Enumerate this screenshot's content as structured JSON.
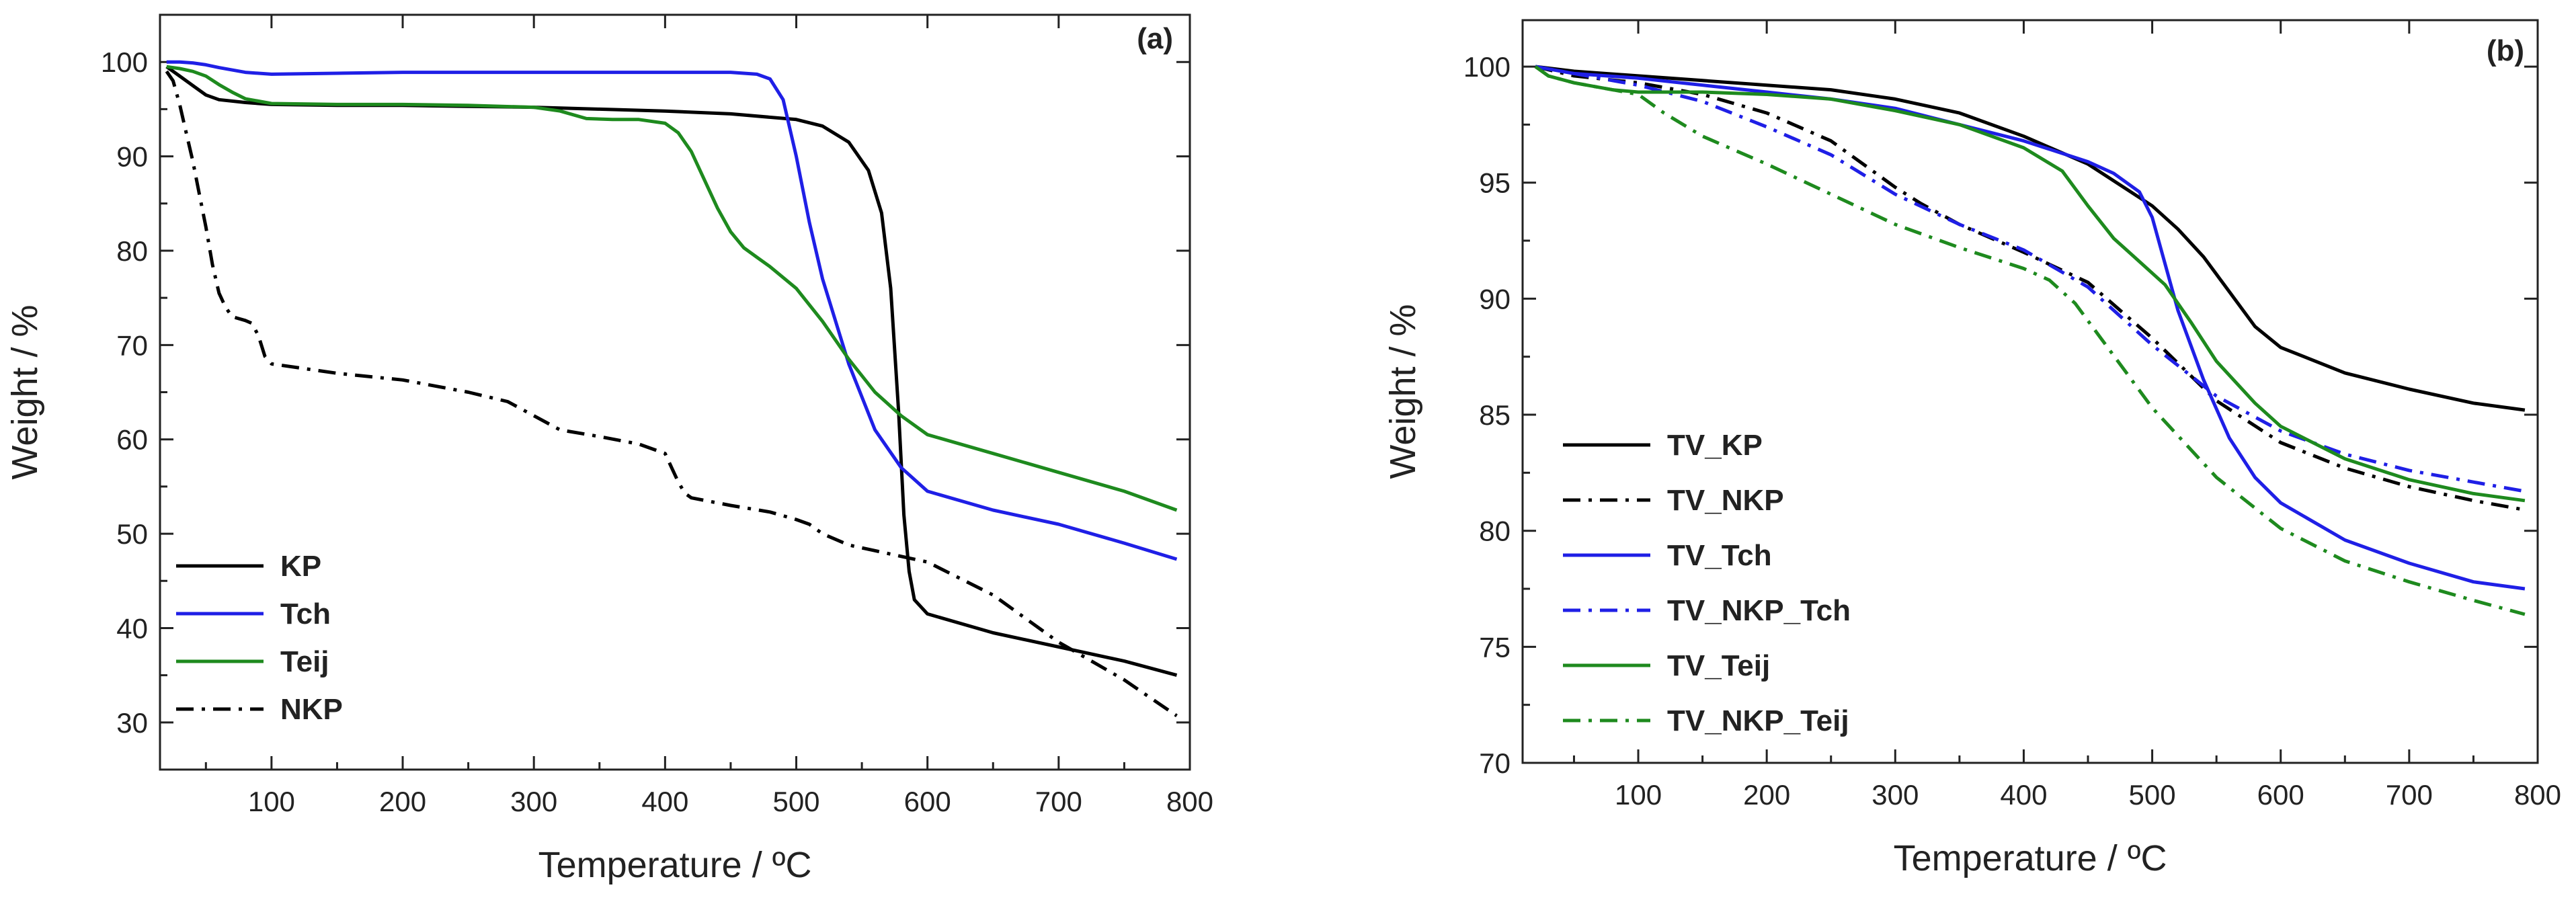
{
  "figure": {
    "panels": [
      "a",
      "b"
    ]
  },
  "chart_data": [
    {
      "type": "line",
      "panel_label": "(a)",
      "xlabel": "Temperature / ºC",
      "ylabel": "Weight / %",
      "xlim": [
        15,
        800
      ],
      "ylim": [
        25,
        105
      ],
      "xticks": [
        100,
        200,
        300,
        400,
        500,
        600,
        700,
        800
      ],
      "yticks": [
        30,
        40,
        50,
        60,
        70,
        80,
        90,
        100
      ],
      "legend_position": "bottom-left",
      "series": [
        {
          "name": "KP",
          "color": "#000000",
          "dash": "solid",
          "x": [
            20,
            30,
            40,
            50,
            60,
            80,
            100,
            150,
            200,
            250,
            300,
            350,
            400,
            450,
            500,
            520,
            540,
            555,
            565,
            572,
            578,
            582,
            586,
            590,
            600,
            650,
            700,
            750,
            790
          ],
          "y": [
            99.5,
            98.5,
            97.5,
            96.5,
            96,
            95.7,
            95.5,
            95.4,
            95.4,
            95.3,
            95.2,
            95.0,
            94.8,
            94.5,
            93.9,
            93.2,
            91.5,
            88.5,
            84,
            76,
            63,
            52,
            46,
            43,
            41.5,
            39.5,
            38,
            36.5,
            35
          ]
        },
        {
          "name": "Tch",
          "color": "#1f1fe6",
          "dash": "solid",
          "x": [
            20,
            30,
            40,
            50,
            60,
            80,
            100,
            150,
            200,
            300,
            400,
            450,
            470,
            480,
            490,
            500,
            510,
            520,
            540,
            560,
            580,
            600,
            650,
            700,
            750,
            790
          ],
          "y": [
            100,
            100,
            99.9,
            99.7,
            99.4,
            98.9,
            98.7,
            98.8,
            98.9,
            98.9,
            98.9,
            98.9,
            98.7,
            98.2,
            96,
            90,
            83,
            77,
            68,
            61,
            57,
            54.5,
            52.5,
            51,
            49,
            47.3
          ]
        },
        {
          "name": "Teij",
          "color": "#1e8a1e",
          "dash": "solid",
          "x": [
            20,
            30,
            40,
            50,
            60,
            70,
            80,
            100,
            150,
            200,
            250,
            300,
            320,
            340,
            360,
            380,
            400,
            410,
            420,
            430,
            440,
            450,
            460,
            470,
            480,
            500,
            520,
            540,
            560,
            580,
            600,
            650,
            700,
            750,
            790
          ],
          "y": [
            99.5,
            99.3,
            99,
            98.5,
            97.6,
            96.8,
            96.1,
            95.6,
            95.5,
            95.5,
            95.4,
            95.2,
            94.8,
            94.0,
            93.9,
            93.9,
            93.5,
            92.5,
            90.5,
            87.5,
            84.5,
            82,
            80.3,
            79.3,
            78.3,
            76,
            72.5,
            68.5,
            65,
            62.5,
            60.5,
            58.5,
            56.5,
            54.5,
            52.5
          ]
        },
        {
          "name": "NKP",
          "color": "#000000",
          "dash": "dashdot",
          "x": [
            20,
            25,
            30,
            35,
            40,
            45,
            50,
            55,
            60,
            65,
            70,
            75,
            80,
            85,
            90,
            95,
            100,
            150,
            200,
            250,
            280,
            300,
            320,
            350,
            380,
            400,
            405,
            410,
            415,
            420,
            450,
            480,
            500,
            510,
            520,
            540,
            560,
            580,
            600,
            650,
            700,
            750,
            790
          ],
          "y": [
            99,
            98,
            95.5,
            92.5,
            89.5,
            86,
            82.5,
            78.5,
            75.5,
            74,
            73,
            72.8,
            72.6,
            72.3,
            71,
            68.8,
            68,
            67,
            66.3,
            65,
            64,
            62.5,
            61,
            60.3,
            59.5,
            58.5,
            57,
            55.5,
            54.3,
            53.8,
            53,
            52.3,
            51.5,
            51,
            50,
            48.8,
            48.2,
            47.6,
            47,
            43.5,
            38.5,
            34.5,
            30.7
          ]
        }
      ]
    },
    {
      "type": "line",
      "panel_label": "(b)",
      "xlabel": "Temperature / ºC",
      "ylabel": "Weight / %",
      "xlim": [
        10,
        800
      ],
      "ylim": [
        70,
        102
      ],
      "xticks": [
        100,
        200,
        300,
        400,
        500,
        600,
        700,
        800
      ],
      "yticks": [
        70,
        75,
        80,
        85,
        90,
        95,
        100
      ],
      "legend_position": "bottom-left",
      "series": [
        {
          "name": "TV_KP",
          "color": "#000000",
          "dash": "solid",
          "x": [
            20,
            50,
            100,
            150,
            200,
            250,
            300,
            350,
            400,
            450,
            500,
            520,
            540,
            560,
            580,
            600,
            650,
            700,
            750,
            790
          ],
          "y": [
            100,
            99.8,
            99.6,
            99.4,
            99.2,
            99.0,
            98.6,
            98.0,
            97.0,
            95.8,
            94.0,
            93.0,
            91.8,
            90.3,
            88.8,
            87.9,
            86.8,
            86.1,
            85.5,
            85.2
          ]
        },
        {
          "name": "TV_NKP",
          "color": "#000000",
          "dash": "dashdot",
          "x": [
            20,
            50,
            100,
            150,
            200,
            250,
            280,
            300,
            320,
            350,
            400,
            450,
            500,
            550,
            600,
            650,
            700,
            750,
            790
          ],
          "y": [
            100,
            99.6,
            99.3,
            98.8,
            98.0,
            96.8,
            95.6,
            94.8,
            94.1,
            93.2,
            92.0,
            90.7,
            88.3,
            85.6,
            83.8,
            82.7,
            81.9,
            81.3,
            80.9
          ]
        },
        {
          "name": "TV_Tch",
          "color": "#1f1fe6",
          "dash": "solid",
          "x": [
            20,
            50,
            100,
            150,
            200,
            250,
            300,
            350,
            400,
            450,
            470,
            490,
            500,
            510,
            520,
            540,
            560,
            580,
            600,
            650,
            700,
            750,
            790
          ],
          "y": [
            100,
            99.7,
            99.5,
            99.2,
            98.9,
            98.6,
            98.2,
            97.5,
            96.8,
            95.9,
            95.4,
            94.6,
            93.5,
            91.5,
            89.5,
            86.5,
            84.0,
            82.3,
            81.2,
            79.6,
            78.6,
            77.8,
            77.5
          ]
        },
        {
          "name": "TV_NKP_Tch",
          "color": "#1f1fe6",
          "dash": "dashdot",
          "x": [
            20,
            50,
            100,
            150,
            200,
            250,
            300,
            350,
            400,
            450,
            500,
            550,
            600,
            650,
            700,
            750,
            790
          ],
          "y": [
            100,
            99.7,
            99.2,
            98.5,
            97.4,
            96.2,
            94.5,
            93.2,
            92.1,
            90.5,
            88.0,
            85.8,
            84.3,
            83.3,
            82.6,
            82.1,
            81.7
          ]
        },
        {
          "name": "TV_Teij",
          "color": "#1e8a1e",
          "dash": "solid",
          "x": [
            20,
            30,
            50,
            80,
            100,
            150,
            200,
            250,
            300,
            350,
            400,
            430,
            450,
            470,
            490,
            510,
            530,
            550,
            580,
            600,
            650,
            700,
            750,
            790
          ],
          "y": [
            100,
            99.6,
            99.3,
            99.0,
            98.9,
            98.9,
            98.8,
            98.6,
            98.1,
            97.5,
            96.5,
            95.5,
            94.0,
            92.6,
            91.6,
            90.6,
            89.0,
            87.3,
            85.5,
            84.5,
            83.1,
            82.2,
            81.6,
            81.3
          ]
        },
        {
          "name": "TV_NKP_Teij",
          "color": "#1e8a1e",
          "dash": "dashdot",
          "x": [
            20,
            30,
            50,
            80,
            100,
            120,
            150,
            200,
            250,
            300,
            350,
            400,
            420,
            440,
            460,
            480,
            500,
            550,
            600,
            650,
            700,
            750,
            790
          ],
          "y": [
            100,
            99.6,
            99.3,
            99.0,
            98.8,
            98.0,
            97.0,
            95.8,
            94.5,
            93.2,
            92.2,
            91.3,
            90.8,
            89.8,
            88.3,
            86.8,
            85.3,
            82.3,
            80.1,
            78.7,
            77.8,
            77.0,
            76.4
          ]
        }
      ]
    }
  ]
}
